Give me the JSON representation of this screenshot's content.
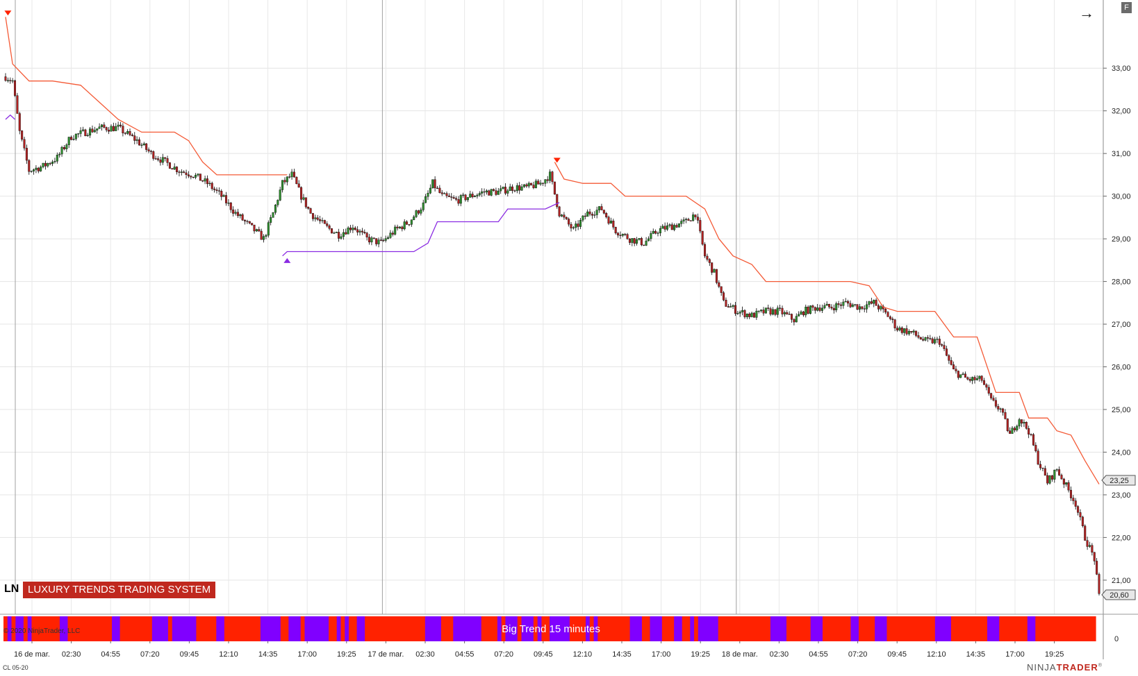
{
  "indicator": {
    "prefix": "LN",
    "title": "LUXURY TRENDS TRADING SYSTEM",
    "panel_label": "Big Trend 15 minutes"
  },
  "copyright": "© 2020 NinjaTrader, LLC",
  "instrument": "CL 05-20",
  "brand": {
    "part1": "NINJA",
    "part2": "TRADER",
    "mark": "®"
  },
  "toolbar": {
    "f_label": "F",
    "arrow_icon": "arrow-right-icon"
  },
  "colors": {
    "bull": "#2f8f2f",
    "bear": "#b22222",
    "resistance": "#f45a36",
    "support": "#8a2be2",
    "red_band": "#ff2200",
    "purple_band": "#8000ff"
  },
  "chart_data": {
    "type": "candlestick",
    "ylim": [
      20.25,
      34.5
    ],
    "yticks": [
      "33,00",
      "32,00",
      "31,00",
      "30,00",
      "29,00",
      "28,00",
      "27,00",
      "26,00",
      "25,00",
      "24,00",
      "23,00",
      "22,00",
      "21,00"
    ],
    "xticks": [
      "16 de mar.",
      "02:30",
      "04:55",
      "07:20",
      "09:45",
      "12:10",
      "14:35",
      "17:00",
      "19:25",
      "17 de mar.",
      "02:30",
      "04:55",
      "07:20",
      "09:45",
      "12:10",
      "14:35",
      "17:00",
      "19:25",
      "18 de mar.",
      "02:30",
      "04:55",
      "07:20",
      "09:45",
      "12:10",
      "14:35",
      "17:00",
      "19:25"
    ],
    "price_labels": {
      "resistance_last": "23,25",
      "last_price": "20,60"
    },
    "lower_panel_tick": "0",
    "close_path": [
      [
        0,
        32.8
      ],
      [
        3,
        32.7
      ],
      [
        6,
        31.5
      ],
      [
        10,
        30.6
      ],
      [
        16,
        30.7
      ],
      [
        22,
        30.9
      ],
      [
        28,
        31.4
      ],
      [
        34,
        31.5
      ],
      [
        40,
        31.6
      ],
      [
        48,
        31.6
      ],
      [
        56,
        31.3
      ],
      [
        62,
        31.0
      ],
      [
        68,
        30.8
      ],
      [
        74,
        30.6
      ],
      [
        80,
        30.5
      ],
      [
        86,
        30.3
      ],
      [
        92,
        30.0
      ],
      [
        98,
        29.6
      ],
      [
        104,
        29.3
      ],
      [
        110,
        29.0
      ],
      [
        114,
        29.6
      ],
      [
        118,
        30.3
      ],
      [
        122,
        30.5
      ],
      [
        126,
        30.0
      ],
      [
        130,
        29.6
      ],
      [
        136,
        29.3
      ],
      [
        142,
        29.1
      ],
      [
        148,
        29.3
      ],
      [
        154,
        29.0
      ],
      [
        160,
        28.9
      ],
      [
        166,
        29.2
      ],
      [
        172,
        29.4
      ],
      [
        178,
        29.8
      ],
      [
        182,
        30.3
      ],
      [
        186,
        30.0
      ],
      [
        192,
        29.9
      ],
      [
        198,
        30.0
      ],
      [
        204,
        30.1
      ],
      [
        210,
        30.1
      ],
      [
        216,
        30.2
      ],
      [
        222,
        30.2
      ],
      [
        228,
        30.3
      ],
      [
        232,
        30.5
      ],
      [
        236,
        29.6
      ],
      [
        242,
        29.2
      ],
      [
        248,
        29.6
      ],
      [
        254,
        29.7
      ],
      [
        260,
        29.2
      ],
      [
        266,
        29.0
      ],
      [
        272,
        28.9
      ],
      [
        278,
        29.2
      ],
      [
        284,
        29.3
      ],
      [
        290,
        29.4
      ],
      [
        294,
        29.6
      ],
      [
        298,
        28.6
      ],
      [
        302,
        28.2
      ],
      [
        306,
        27.5
      ],
      [
        312,
        27.3
      ],
      [
        318,
        27.2
      ],
      [
        324,
        27.3
      ],
      [
        330,
        27.3
      ],
      [
        336,
        27.1
      ],
      [
        340,
        27.3
      ],
      [
        346,
        27.4
      ],
      [
        352,
        27.4
      ],
      [
        358,
        27.5
      ],
      [
        364,
        27.4
      ],
      [
        370,
        27.5
      ],
      [
        376,
        27.2
      ],
      [
        380,
        26.9
      ],
      [
        386,
        26.8
      ],
      [
        392,
        26.6
      ],
      [
        398,
        26.6
      ],
      [
        404,
        25.9
      ],
      [
        410,
        25.7
      ],
      [
        416,
        25.7
      ],
      [
        420,
        25.2
      ],
      [
        424,
        25.0
      ],
      [
        428,
        24.4
      ],
      [
        432,
        24.8
      ],
      [
        436,
        24.5
      ],
      [
        440,
        23.8
      ],
      [
        444,
        23.3
      ],
      [
        448,
        23.6
      ],
      [
        452,
        23.2
      ],
      [
        456,
        22.8
      ],
      [
        460,
        22.0
      ],
      [
        464,
        21.5
      ],
      [
        466,
        20.6
      ]
    ],
    "resistance_path": [
      [
        0,
        34.2
      ],
      [
        3,
        33.1
      ],
      [
        10,
        32.7
      ],
      [
        20,
        32.7
      ],
      [
        32,
        32.6
      ],
      [
        40,
        32.2
      ],
      [
        48,
        31.8
      ],
      [
        58,
        31.5
      ],
      [
        72,
        31.5
      ],
      [
        78,
        31.3
      ],
      [
        84,
        30.8
      ],
      [
        90,
        30.5
      ],
      [
        100,
        30.5
      ],
      [
        110,
        30.5
      ],
      [
        114,
        30.5
      ],
      [
        120,
        30.5
      ]
    ],
    "resistance_path_2": [
      [
        234,
        30.8
      ],
      [
        238,
        30.4
      ],
      [
        246,
        30.3
      ],
      [
        258,
        30.3
      ],
      [
        264,
        30.0
      ],
      [
        280,
        30.0
      ],
      [
        290,
        30.0
      ],
      [
        298,
        29.7
      ],
      [
        304,
        29.0
      ],
      [
        310,
        28.6
      ],
      [
        318,
        28.4
      ],
      [
        324,
        28.0
      ],
      [
        340,
        28.0
      ],
      [
        360,
        28.0
      ],
      [
        368,
        27.9
      ],
      [
        374,
        27.4
      ],
      [
        380,
        27.3
      ],
      [
        388,
        27.3
      ],
      [
        396,
        27.3
      ],
      [
        400,
        27.0
      ],
      [
        404,
        26.7
      ],
      [
        414,
        26.7
      ],
      [
        422,
        25.4
      ],
      [
        432,
        25.4
      ],
      [
        436,
        24.8
      ],
      [
        444,
        24.8
      ],
      [
        448,
        24.5
      ],
      [
        454,
        24.4
      ],
      [
        460,
        23.8
      ],
      [
        466,
        23.25
      ]
    ],
    "support_path": [
      [
        0,
        31.8
      ],
      [
        2,
        31.9
      ],
      [
        4,
        31.8
      ]
    ],
    "support_path_2": [
      [
        118,
        28.6
      ],
      [
        120,
        28.7
      ],
      [
        150,
        28.7
      ],
      [
        174,
        28.7
      ],
      [
        180,
        28.9
      ],
      [
        184,
        29.4
      ],
      [
        190,
        29.4
      ],
      [
        210,
        29.4
      ],
      [
        214,
        29.7
      ],
      [
        230,
        29.7
      ],
      [
        234,
        29.8
      ],
      [
        236,
        29.85
      ]
    ],
    "signals": [
      {
        "type": "down",
        "index": 1,
        "price": 34.3
      },
      {
        "type": "up",
        "index": 120,
        "price": 28.5
      },
      {
        "type": "down",
        "index": 235,
        "price": 30.85
      }
    ],
    "trend_band": "R P R P P R P R R R R R R R P P R R R R R R R R R R R P P R R R R R R R R P P P P R P P P P P P R R R R R P P R R R R R R R R R P P P P P R R P P P R P P P P P P R R P R P R R P P R R R R R R R R R R R R R R R P P P P R R R P P P P P P P R R R R P R P P P R P P P R P R R P P P P P R R R R P R P R R R R R R R R P P P R R P P P R R R P P R R P R P P P P P R R R R R R R R R R R R R P P P P R R R R R R P P P R R R R R R R P P R R R R P P P R R R R R R R R R R R R P P P P R R R R R R R R R P P P R R R R R R R P P R R R R R R R R R R R R R R R"
  }
}
